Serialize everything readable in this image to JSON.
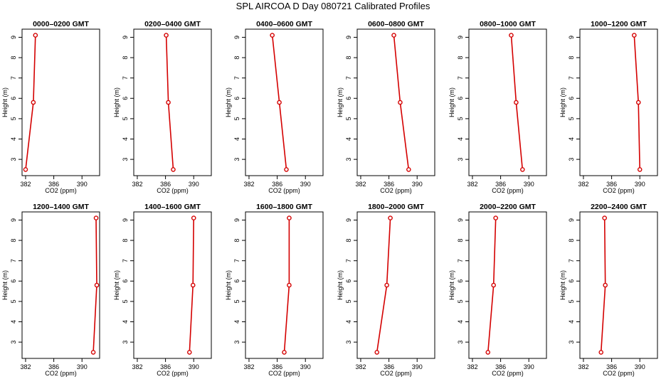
{
  "figure": {
    "title": "SPL AIRCOA D  Day 080721  Calibrated Profiles"
  },
  "style": {
    "line_color": "#d40000",
    "frame_color": "#000000"
  },
  "chart_data": [
    {
      "type": "line",
      "title": "0000–0200 GMT",
      "xlabel": "CO2 (ppm)",
      "ylabel": "Height (m)",
      "xlim": [
        381.5,
        392.5
      ],
      "ylim": [
        2.2,
        9.4
      ],
      "xticks": [
        382,
        386,
        390
      ],
      "yticks": [
        3,
        4,
        5,
        6,
        7,
        8,
        9
      ],
      "grid": false,
      "series": [
        {
          "x": [
            382.0,
            383.1,
            383.4
          ],
          "y": [
            2.5,
            5.8,
            9.1
          ]
        }
      ]
    },
    {
      "type": "line",
      "title": "0200–0400 GMT",
      "xlabel": "CO2 (ppm)",
      "ylabel": "Height (m)",
      "xlim": [
        381.5,
        392.5
      ],
      "ylim": [
        2.2,
        9.4
      ],
      "xticks": [
        382,
        386,
        390
      ],
      "yticks": [
        3,
        4,
        5,
        6,
        7,
        8,
        9
      ],
      "grid": false,
      "series": [
        {
          "x": [
            387.1,
            386.4,
            386.1
          ],
          "y": [
            2.5,
            5.8,
            9.1
          ]
        }
      ]
    },
    {
      "type": "line",
      "title": "0400–0600 GMT",
      "xlabel": "CO2 (ppm)",
      "ylabel": "Height (m)",
      "xlim": [
        381.5,
        392.5
      ],
      "ylim": [
        2.2,
        9.4
      ],
      "xticks": [
        382,
        386,
        390
      ],
      "yticks": [
        3,
        4,
        5,
        6,
        7,
        8,
        9
      ],
      "grid": false,
      "series": [
        {
          "x": [
            387.3,
            386.3,
            385.3
          ],
          "y": [
            2.5,
            5.8,
            9.1
          ]
        }
      ]
    },
    {
      "type": "line",
      "title": "0600–0800 GMT",
      "xlabel": "CO2 (ppm)",
      "ylabel": "Height (m)",
      "xlim": [
        381.5,
        392.5
      ],
      "ylim": [
        2.2,
        9.4
      ],
      "xticks": [
        382,
        386,
        390
      ],
      "yticks": [
        3,
        4,
        5,
        6,
        7,
        8,
        9
      ],
      "grid": false,
      "series": [
        {
          "x": [
            388.8,
            387.6,
            386.7
          ],
          "y": [
            2.5,
            5.8,
            9.1
          ]
        }
      ]
    },
    {
      "type": "line",
      "title": "0800–1000 GMT",
      "xlabel": "CO2 (ppm)",
      "ylabel": "Height (m)",
      "xlim": [
        381.5,
        392.5
      ],
      "ylim": [
        2.2,
        9.4
      ],
      "xticks": [
        382,
        386,
        390
      ],
      "yticks": [
        3,
        4,
        5,
        6,
        7,
        8,
        9
      ],
      "grid": false,
      "series": [
        {
          "x": [
            389.1,
            388.2,
            387.5
          ],
          "y": [
            2.5,
            5.8,
            9.1
          ]
        }
      ]
    },
    {
      "type": "line",
      "title": "1000–1200 GMT",
      "xlabel": "CO2 (ppm)",
      "ylabel": "Height (m)",
      "xlim": [
        381.5,
        392.5
      ],
      "ylim": [
        2.2,
        9.4
      ],
      "xticks": [
        382,
        386,
        390
      ],
      "yticks": [
        3,
        4,
        5,
        6,
        7,
        8,
        9
      ],
      "grid": false,
      "series": [
        {
          "x": [
            390.0,
            389.8,
            389.2
          ],
          "y": [
            2.5,
            5.8,
            9.1
          ]
        }
      ]
    },
    {
      "type": "line",
      "title": "1200–1400 GMT",
      "xlabel": "CO2 (ppm)",
      "ylabel": "Height (m)",
      "xlim": [
        381.5,
        392.5
      ],
      "ylim": [
        2.2,
        9.4
      ],
      "xticks": [
        382,
        386,
        390
      ],
      "yticks": [
        3,
        4,
        5,
        6,
        7,
        8,
        9
      ],
      "grid": false,
      "series": [
        {
          "x": [
            391.6,
            392.1,
            392.0
          ],
          "y": [
            2.5,
            5.8,
            9.1
          ]
        }
      ]
    },
    {
      "type": "line",
      "title": "1400–1600 GMT",
      "xlabel": "CO2 (ppm)",
      "ylabel": "Height (m)",
      "xlim": [
        381.5,
        392.5
      ],
      "ylim": [
        2.2,
        9.4
      ],
      "xticks": [
        382,
        386,
        390
      ],
      "yticks": [
        3,
        4,
        5,
        6,
        7,
        8,
        9
      ],
      "grid": false,
      "series": [
        {
          "x": [
            389.4,
            389.9,
            390.0
          ],
          "y": [
            2.5,
            5.8,
            9.1
          ]
        }
      ]
    },
    {
      "type": "line",
      "title": "1600–1800 GMT",
      "xlabel": "CO2 (ppm)",
      "ylabel": "Height (m)",
      "xlim": [
        381.5,
        392.5
      ],
      "ylim": [
        2.2,
        9.4
      ],
      "xticks": [
        382,
        386,
        390
      ],
      "yticks": [
        3,
        4,
        5,
        6,
        7,
        8,
        9
      ],
      "grid": false,
      "series": [
        {
          "x": [
            387.0,
            387.7,
            387.7
          ],
          "y": [
            2.5,
            5.8,
            9.1
          ]
        }
      ]
    },
    {
      "type": "line",
      "title": "1800–2000 GMT",
      "xlabel": "CO2 (ppm)",
      "ylabel": "Height (m)",
      "xlim": [
        381.5,
        392.5
      ],
      "ylim": [
        2.2,
        9.4
      ],
      "xticks": [
        382,
        386,
        390
      ],
      "yticks": [
        3,
        4,
        5,
        6,
        7,
        8,
        9
      ],
      "grid": false,
      "series": [
        {
          "x": [
            384.3,
            385.7,
            386.2
          ],
          "y": [
            2.5,
            5.8,
            9.1
          ]
        }
      ]
    },
    {
      "type": "line",
      "title": "2000–2200 GMT",
      "xlabel": "CO2 (ppm)",
      "ylabel": "Height (m)",
      "xlim": [
        381.5,
        392.5
      ],
      "ylim": [
        2.2,
        9.4
      ],
      "xticks": [
        382,
        386,
        390
      ],
      "yticks": [
        3,
        4,
        5,
        6,
        7,
        8,
        9
      ],
      "grid": false,
      "series": [
        {
          "x": [
            384.2,
            385.0,
            385.3
          ],
          "y": [
            2.5,
            5.8,
            9.1
          ]
        }
      ]
    },
    {
      "type": "line",
      "title": "2200–2400 GMT",
      "xlabel": "CO2 (ppm)",
      "ylabel": "Height (m)",
      "xlim": [
        381.5,
        392.5
      ],
      "ylim": [
        2.2,
        9.4
      ],
      "xticks": [
        382,
        386,
        390
      ],
      "yticks": [
        3,
        4,
        5,
        6,
        7,
        8,
        9
      ],
      "grid": false,
      "series": [
        {
          "x": [
            384.5,
            385.1,
            385.0
          ],
          "y": [
            2.5,
            5.8,
            9.1
          ]
        }
      ]
    }
  ]
}
